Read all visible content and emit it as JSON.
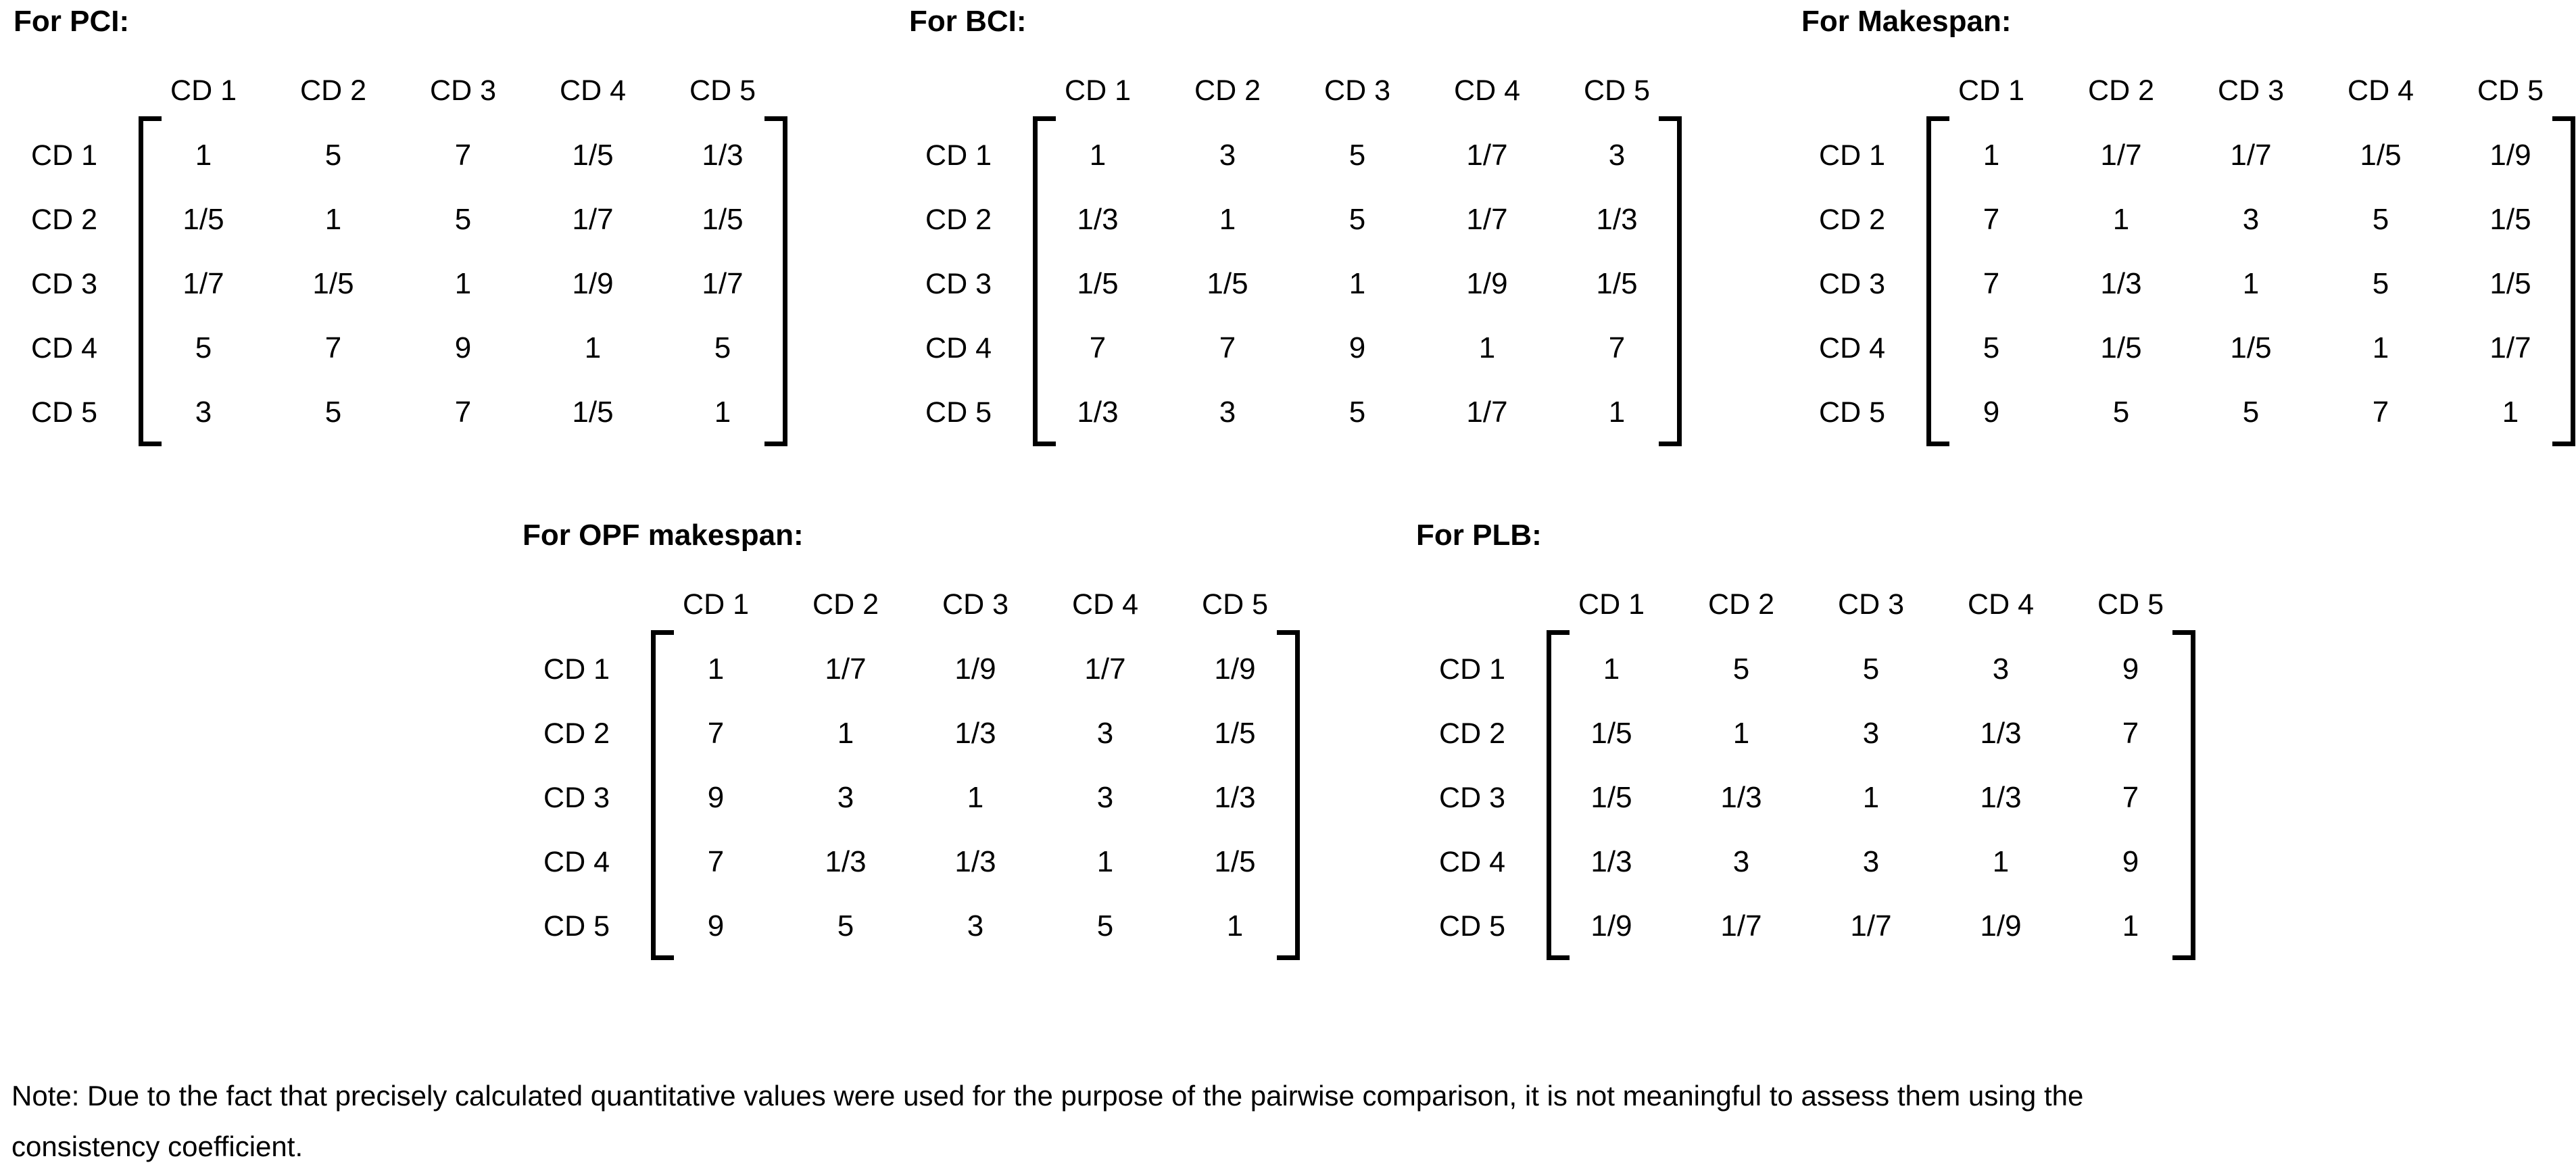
{
  "page": {
    "background_color": "#ffffff",
    "text_color": "#000000"
  },
  "matrices": [
    {
      "title": "For PCI:",
      "col_labels": [
        "CD 1",
        "CD 2",
        "CD 3",
        "CD 4",
        "CD 5"
      ],
      "row_labels": [
        "CD 1",
        "CD 2",
        "CD 3",
        "CD 4",
        "CD 5"
      ],
      "rows": [
        [
          "1",
          "5",
          "7",
          "1/5",
          "1/3"
        ],
        [
          "1/5",
          "1",
          "5",
          "1/7",
          "1/5"
        ],
        [
          "1/7",
          "1/5",
          "1",
          "1/9",
          "1/7"
        ],
        [
          "5",
          "7",
          "9",
          "1",
          "5"
        ],
        [
          "3",
          "5",
          "7",
          "1/5",
          "1"
        ]
      ]
    },
    {
      "title": "For BCI:",
      "col_labels": [
        "CD 1",
        "CD 2",
        "CD 3",
        "CD 4",
        "CD 5"
      ],
      "row_labels": [
        "CD 1",
        "CD 2",
        "CD 3",
        "CD 4",
        "CD 5"
      ],
      "rows": [
        [
          "1",
          "3",
          "5",
          "1/7",
          "3"
        ],
        [
          "1/3",
          "1",
          "5",
          "1/7",
          "1/3"
        ],
        [
          "1/5",
          "1/5",
          "1",
          "1/9",
          "1/5"
        ],
        [
          "7",
          "7",
          "9",
          "1",
          "7"
        ],
        [
          "1/3",
          "3",
          "5",
          "1/7",
          "1"
        ]
      ]
    },
    {
      "title": "For Makespan:",
      "col_labels": [
        "CD 1",
        "CD 2",
        "CD 3",
        "CD 4",
        "CD 5"
      ],
      "row_labels": [
        "CD 1",
        "CD 2",
        "CD 3",
        "CD 4",
        "CD 5"
      ],
      "rows": [
        [
          "1",
          "1/7",
          "1/7",
          "1/5",
          "1/9"
        ],
        [
          "7",
          "1",
          "3",
          "5",
          "1/5"
        ],
        [
          "7",
          "1/3",
          "1",
          "5",
          "1/5"
        ],
        [
          "5",
          "1/5",
          "1/5",
          "1",
          "1/7"
        ],
        [
          "9",
          "5",
          "5",
          "7",
          "1"
        ]
      ]
    },
    {
      "title": "For OPF makespan:",
      "col_labels": [
        "CD 1",
        "CD 2",
        "CD 3",
        "CD 4",
        "CD 5"
      ],
      "row_labels": [
        "CD 1",
        "CD 2",
        "CD 3",
        "CD 4",
        "CD 5"
      ],
      "rows": [
        [
          "1",
          "1/7",
          "1/9",
          "1/7",
          "1/9"
        ],
        [
          "7",
          "1",
          "1/3",
          "3",
          "1/5"
        ],
        [
          "9",
          "3",
          "1",
          "3",
          "1/3"
        ],
        [
          "7",
          "1/3",
          "1/3",
          "1",
          "1/5"
        ],
        [
          "9",
          "5",
          "3",
          "5",
          "1"
        ]
      ]
    },
    {
      "title": "For PLB:",
      "col_labels": [
        "CD 1",
        "CD 2",
        "CD 3",
        "CD 4",
        "CD 5"
      ],
      "row_labels": [
        "CD 1",
        "CD 2",
        "CD 3",
        "CD 4",
        "CD 5"
      ],
      "rows": [
        [
          "1",
          "5",
          "5",
          "3",
          "9"
        ],
        [
          "1/5",
          "1",
          "3",
          "1/3",
          "7"
        ],
        [
          "1/5",
          "1/3",
          "1",
          "1/3",
          "7"
        ],
        [
          "1/3",
          "3",
          "3",
          "1",
          "9"
        ],
        [
          "1/9",
          "1/7",
          "1/7",
          "1/9",
          "1"
        ]
      ]
    }
  ],
  "note": {
    "line1": "Note: Due to the fact that precisely calculated quantitative values were used for the purpose of the pairwise comparison, it is not meaningful to assess them using the",
    "line2": "consistency coefficient."
  }
}
